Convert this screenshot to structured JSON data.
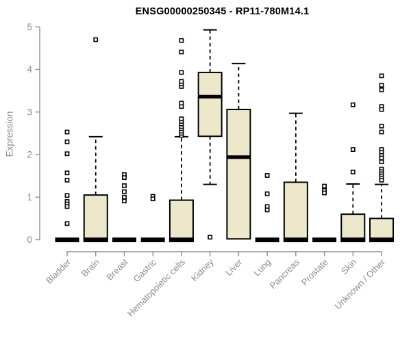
{
  "chart_data": {
    "type": "boxplot",
    "title": "ENSG00000250345 - RP11-780M14.1",
    "ylabel": "Expression",
    "xlabel": "",
    "ylim": [
      0,
      5
    ],
    "yticks": [
      0,
      1,
      2,
      3,
      4,
      5
    ],
    "grid": false,
    "legend": "none",
    "categories": [
      "Bladder",
      "Brain",
      "Breast",
      "Gastric",
      "Hematopoietic cells",
      "Kidney",
      "Liver",
      "Lung",
      "Pancreas",
      "Prostate",
      "Skin",
      "Unknown / Other"
    ],
    "series": [
      {
        "name": "Bladder",
        "low": 0,
        "q1": 0,
        "median": 0,
        "q3": 0,
        "high": 0,
        "outliers": [
          2.53,
          2.3,
          2.02,
          1.57,
          1.4,
          1.04,
          0.9,
          0.84,
          0.78,
          0.38
        ]
      },
      {
        "name": "Brain",
        "low": 0,
        "q1": 0,
        "median": 0,
        "q3": 1.05,
        "high": 2.42,
        "outliers": [
          4.7
        ]
      },
      {
        "name": "Breast",
        "low": 0,
        "q1": 0,
        "median": 0,
        "q3": 0,
        "high": 0,
        "outliers": [
          1.53,
          1.46,
          1.27,
          1.13,
          1.0,
          0.91
        ]
      },
      {
        "name": "Gastric",
        "low": 0,
        "q1": 0,
        "median": 0,
        "q3": 0,
        "high": 0,
        "outliers": [
          1.02,
          0.96
        ]
      },
      {
        "name": "Hematopoietic cells",
        "low": 0,
        "q1": 0,
        "median": 0,
        "q3": 0.93,
        "high": 2.42,
        "outliers": [
          2.45,
          2.5,
          2.55,
          2.61,
          2.66,
          2.72,
          2.78,
          2.84,
          3.13,
          3.21,
          3.6,
          3.66,
          3.72,
          3.93,
          4.41,
          4.68
        ]
      },
      {
        "name": "Kidney",
        "low": 1.3,
        "q1": 2.43,
        "median": 3.36,
        "q3": 3.93,
        "high": 4.93,
        "outliers": [
          0.06
        ]
      },
      {
        "name": "Liver",
        "low": 0,
        "q1": 0.02,
        "median": 1.94,
        "q3": 3.06,
        "high": 4.14,
        "outliers": []
      },
      {
        "name": "Lung",
        "low": 0,
        "q1": 0,
        "median": 0,
        "q3": 0,
        "high": 0,
        "outliers": [
          1.51,
          1.08,
          0.78,
          0.7
        ]
      },
      {
        "name": "Pancreas",
        "low": 0,
        "q1": 0,
        "median": 0,
        "q3": 1.35,
        "high": 2.97,
        "outliers": []
      },
      {
        "name": "Prostate",
        "low": 0,
        "q1": 0,
        "median": 0,
        "q3": 0,
        "high": 0,
        "outliers": [
          1.26,
          1.16,
          1.1
        ]
      },
      {
        "name": "Skin",
        "low": 0,
        "q1": 0,
        "median": 0,
        "q3": 0.6,
        "high": 1.31,
        "outliers": [
          3.17,
          2.12,
          1.59
        ]
      },
      {
        "name": "Unknown / Other",
        "low": 0,
        "q1": 0,
        "median": 0,
        "q3": 0.5,
        "high": 1.3,
        "outliers": [
          3.85,
          3.63,
          3.52,
          3.13,
          3.06,
          2.67,
          2.53,
          2.12,
          2.05,
          1.98,
          1.92,
          1.83,
          1.66,
          1.6,
          1.55,
          1.5,
          1.45,
          1.4
        ]
      }
    ],
    "colors": {
      "box_fill": "#ede8cc",
      "box_stroke": "#000000",
      "whisker": "#000000",
      "outlier_stroke": "#000000",
      "axis": "#8f8f8f",
      "tick_label": "#8c8c8c",
      "title": "#000000",
      "background": "#ffffff"
    }
  }
}
